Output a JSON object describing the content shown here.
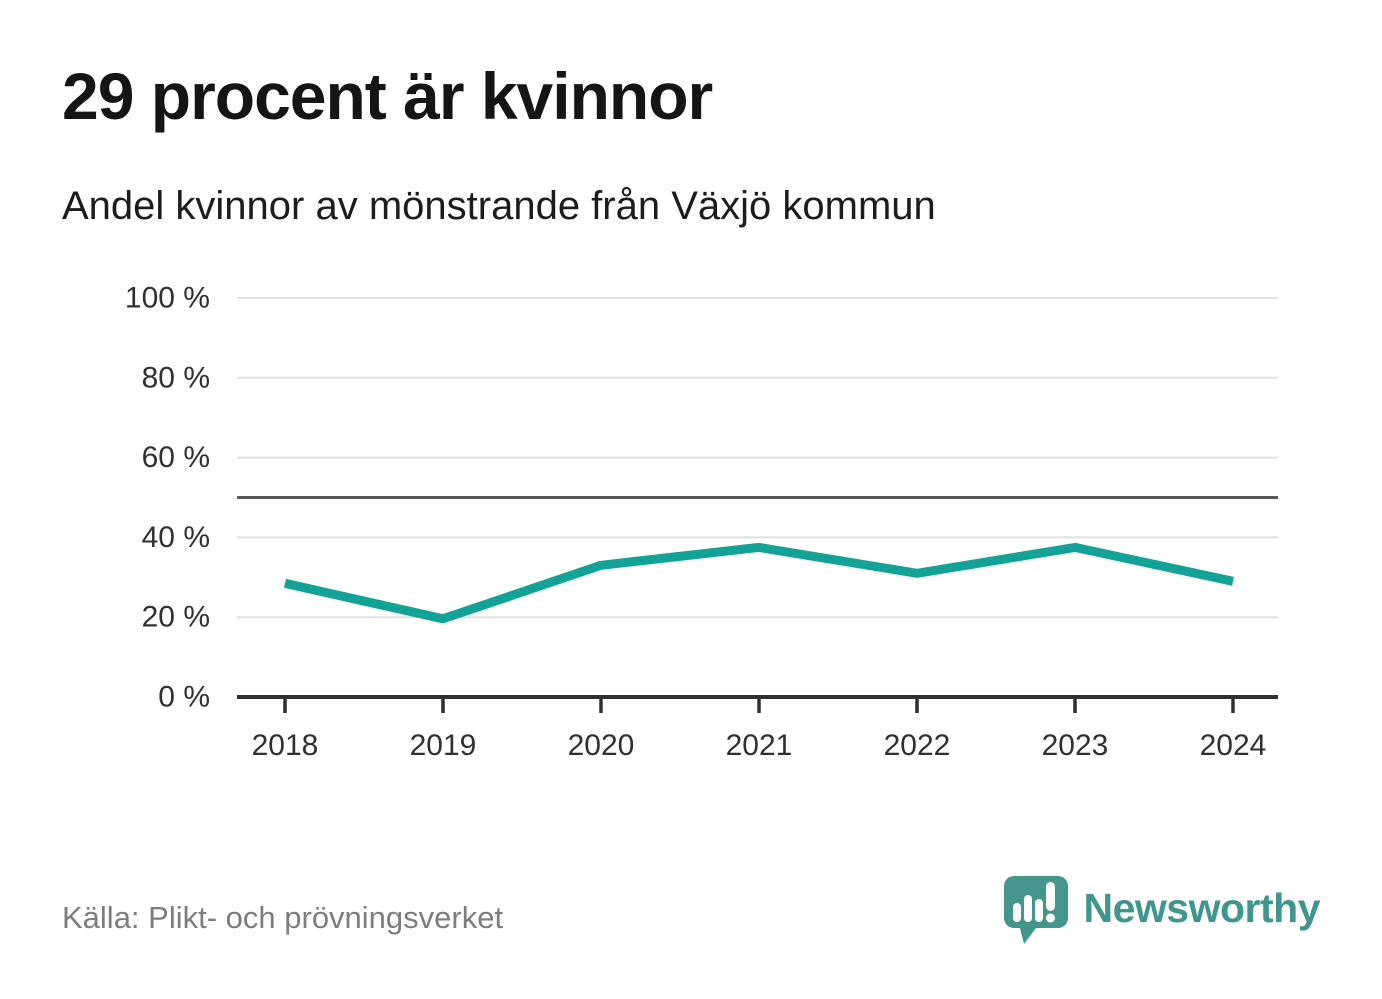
{
  "chart_data": {
    "type": "line",
    "title": "29 procent är kvinnor",
    "subtitle": "Andel kvinnor av mönstrande från Växjö kommun",
    "source": "Källa: Plikt- och prövningsverket",
    "categories": [
      "2018",
      "2019",
      "2020",
      "2021",
      "2022",
      "2023",
      "2024"
    ],
    "series": [
      {
        "name": "Andel kvinnor av mönstrande",
        "color": "#12a296",
        "values": [
          28.5,
          19.6,
          33,
          37.5,
          31,
          37.5,
          29
        ]
      }
    ],
    "ylim": [
      0,
      100
    ],
    "y_ticks": [
      {
        "value": 0,
        "label": "0 %"
      },
      {
        "value": 20,
        "label": "20 %"
      },
      {
        "value": 40,
        "label": "40 %"
      },
      {
        "value": 60,
        "label": "60 %"
      },
      {
        "value": 80,
        "label": "80 %"
      },
      {
        "value": 100,
        "label": "100 %"
      }
    ],
    "reference_line": {
      "value": 50
    },
    "grid": true,
    "legend": false
  },
  "branding": {
    "name": "Newsworthy",
    "logo_icon": "bar-chart-speech-bubble-icon",
    "logo_color": "#44958c",
    "text_color": "#3f968e"
  },
  "colors": {
    "line": "#12a296",
    "grid": "#e0e0e0",
    "reference_line": "#56575a",
    "axis": "#2f2f2f",
    "tick_text": "#303030",
    "title_text": "#151515",
    "source_text": "#7d7d7d",
    "background": "#ffffff"
  }
}
